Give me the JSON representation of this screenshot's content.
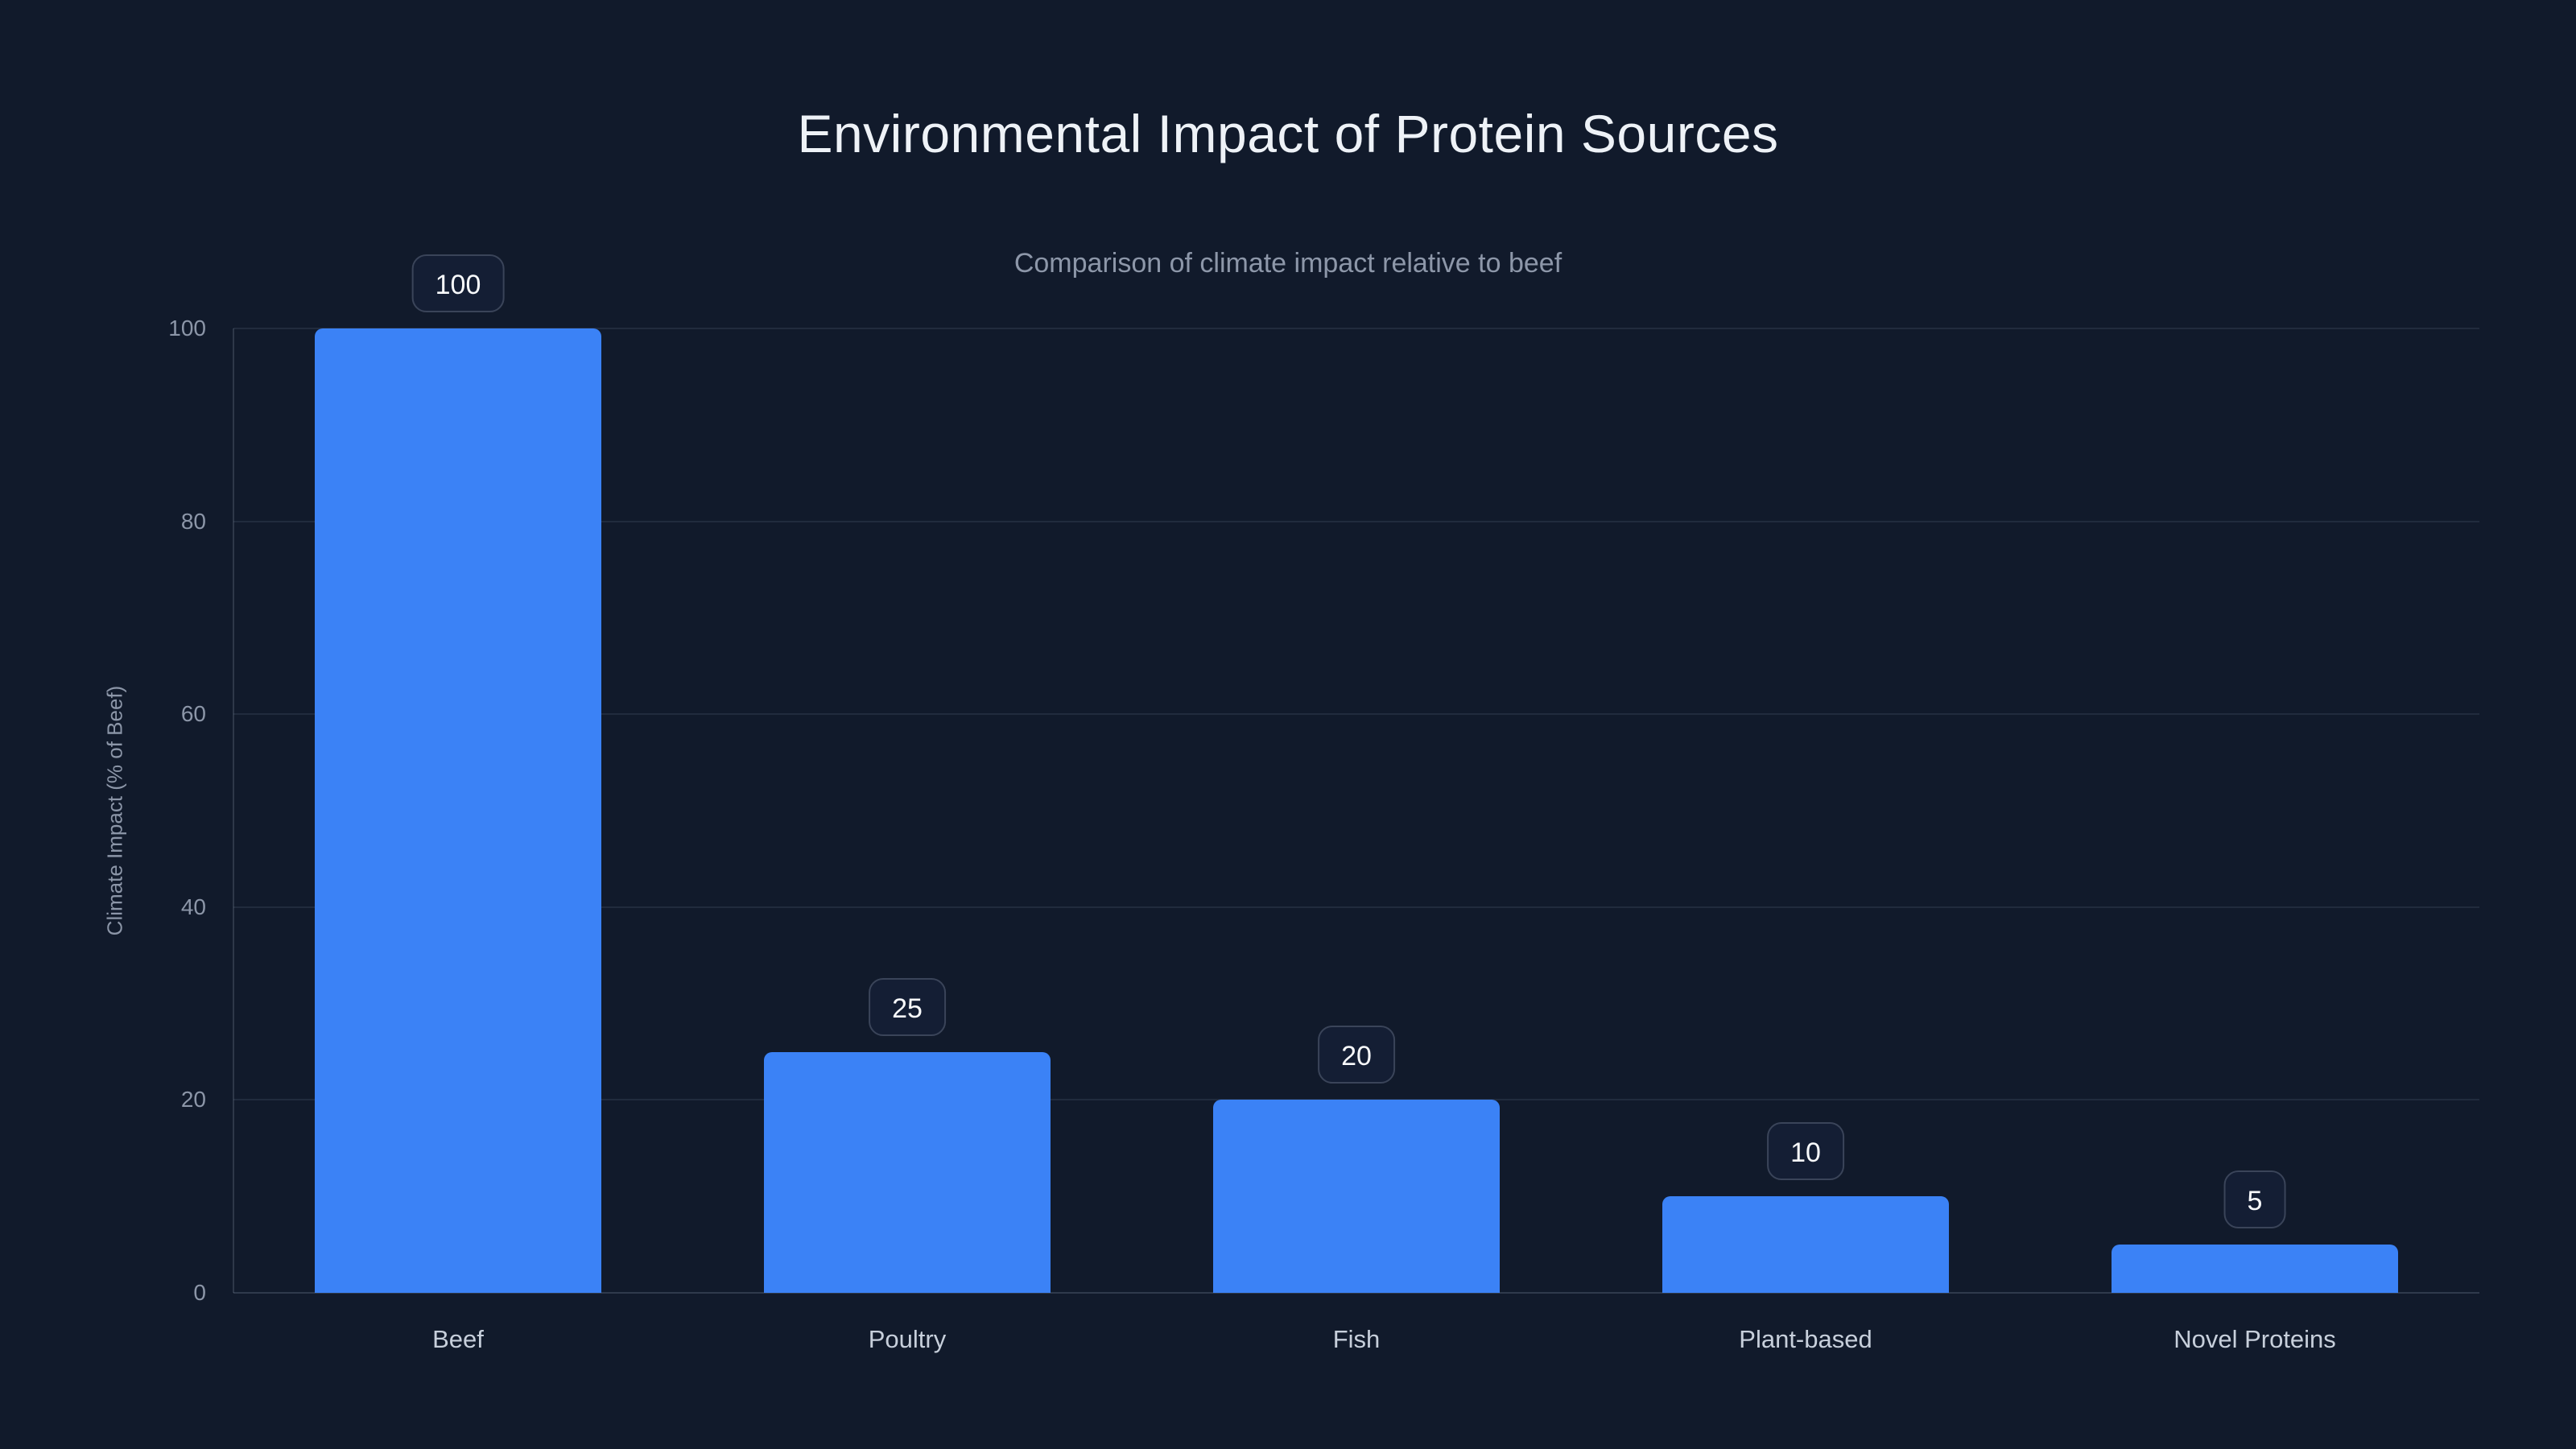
{
  "header": {
    "title": "Environmental Impact of Protein Sources",
    "subtitle": "Comparison of climate impact relative to beef"
  },
  "axes": {
    "y_label": "Climate Impact (% of Beef)",
    "y_tick_labels": [
      "0",
      "20",
      "40",
      "60",
      "80",
      "100"
    ]
  },
  "chart_data": {
    "type": "bar",
    "title": "Environmental Impact of Protein Sources",
    "subtitle": "Comparison of climate impact relative to beef",
    "categories": [
      "Beef",
      "Poultry",
      "Fish",
      "Plant-based",
      "Novel Proteins"
    ],
    "values": [
      100,
      25,
      20,
      10,
      5
    ],
    "value_labels": [
      "100",
      "25",
      "20",
      "10",
      "5"
    ],
    "xlabel": "",
    "ylabel": "Climate Impact (% of Beef)",
    "ylim": [
      0,
      100
    ],
    "yticks": [
      0,
      20,
      40,
      60,
      80,
      100
    ],
    "grid": "horizontal",
    "legend": "none",
    "series_color": "#3b82f6"
  },
  "colors": {
    "background": "#111a2b",
    "bar": "#3b82f6",
    "title_text": "#eef2f7",
    "subtitle_text": "#8d97a9",
    "tick_text": "#8c96a8",
    "category_text": "#c7cfdb",
    "badge_border": "#3a4459",
    "badge_background": "#141e34",
    "badge_text": "#f8fafc"
  }
}
